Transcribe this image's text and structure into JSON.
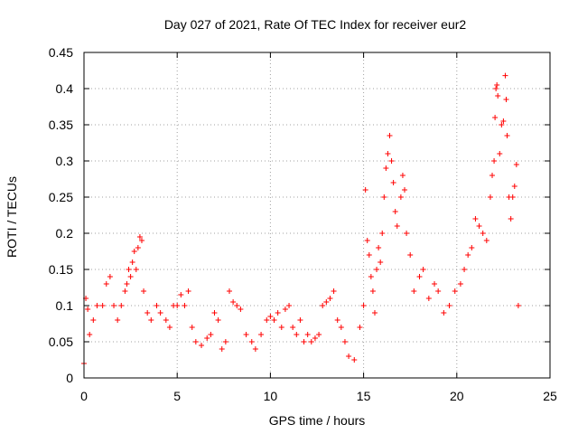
{
  "chart_data": {
    "type": "scatter",
    "title": "Day 027 of 2021, Rate Of TEC Index for receiver eur2",
    "xlabel": "GPS time / hours",
    "ylabel": "ROTI / TECUs",
    "xlim": [
      0,
      25
    ],
    "ylim": [
      0,
      0.45
    ],
    "x_ticks": [
      0,
      5,
      10,
      15,
      20,
      25
    ],
    "x_tick_labels": [
      "0",
      "5",
      "10",
      "15",
      "20",
      "25"
    ],
    "y_ticks": [
      0,
      0.05,
      0.1,
      0.15,
      0.2,
      0.25,
      0.3,
      0.35,
      0.4,
      0.45
    ],
    "y_tick_labels": [
      "0",
      "0.05",
      "0.1",
      "0.15",
      "0.2",
      "0.25",
      "0.3",
      "0.35",
      "0.4",
      "0.45"
    ],
    "grid": true,
    "marker": "plus",
    "color": "#ff0000",
    "series": [
      {
        "name": "",
        "points": [
          [
            0.0,
            0.02
          ],
          [
            0.1,
            0.11
          ],
          [
            0.2,
            0.095
          ],
          [
            0.3,
            0.06
          ],
          [
            0.5,
            0.08
          ],
          [
            0.7,
            0.1
          ],
          [
            1.0,
            0.1
          ],
          [
            1.2,
            0.13
          ],
          [
            1.4,
            0.14
          ],
          [
            1.6,
            0.1
          ],
          [
            1.8,
            0.08
          ],
          [
            2.0,
            0.1
          ],
          [
            2.2,
            0.12
          ],
          [
            2.3,
            0.13
          ],
          [
            2.4,
            0.15
          ],
          [
            2.5,
            0.14
          ],
          [
            2.6,
            0.16
          ],
          [
            2.7,
            0.175
          ],
          [
            2.8,
            0.15
          ],
          [
            2.9,
            0.18
          ],
          [
            3.0,
            0.195
          ],
          [
            3.1,
            0.19
          ],
          [
            3.2,
            0.12
          ],
          [
            3.4,
            0.09
          ],
          [
            3.6,
            0.08
          ],
          [
            3.9,
            0.1
          ],
          [
            4.1,
            0.09
          ],
          [
            4.4,
            0.08
          ],
          [
            4.6,
            0.07
          ],
          [
            4.8,
            0.1
          ],
          [
            5.0,
            0.1
          ],
          [
            5.2,
            0.115
          ],
          [
            5.4,
            0.1
          ],
          [
            5.6,
            0.12
          ],
          [
            5.8,
            0.07
          ],
          [
            6.0,
            0.05
          ],
          [
            6.3,
            0.045
          ],
          [
            6.6,
            0.055
          ],
          [
            6.8,
            0.06
          ],
          [
            7.0,
            0.09
          ],
          [
            7.2,
            0.08
          ],
          [
            7.4,
            0.04
          ],
          [
            7.6,
            0.05
          ],
          [
            7.8,
            0.12
          ],
          [
            8.0,
            0.105
          ],
          [
            8.2,
            0.1
          ],
          [
            8.4,
            0.095
          ],
          [
            8.7,
            0.06
          ],
          [
            9.0,
            0.05
          ],
          [
            9.2,
            0.04
          ],
          [
            9.5,
            0.06
          ],
          [
            9.8,
            0.08
          ],
          [
            10.0,
            0.085
          ],
          [
            10.2,
            0.08
          ],
          [
            10.4,
            0.09
          ],
          [
            10.6,
            0.07
          ],
          [
            10.8,
            0.095
          ],
          [
            11.0,
            0.1
          ],
          [
            11.2,
            0.07
          ],
          [
            11.4,
            0.06
          ],
          [
            11.6,
            0.08
          ],
          [
            11.8,
            0.05
          ],
          [
            12.0,
            0.06
          ],
          [
            12.2,
            0.05
          ],
          [
            12.4,
            0.055
          ],
          [
            12.6,
            0.06
          ],
          [
            12.8,
            0.1
          ],
          [
            13.0,
            0.105
          ],
          [
            13.2,
            0.11
          ],
          [
            13.4,
            0.12
          ],
          [
            13.6,
            0.08
          ],
          [
            13.8,
            0.07
          ],
          [
            14.0,
            0.05
          ],
          [
            14.2,
            0.03
          ],
          [
            14.5,
            0.025
          ],
          [
            14.8,
            0.07
          ],
          [
            15.0,
            0.1
          ],
          [
            15.1,
            0.26
          ],
          [
            15.2,
            0.19
          ],
          [
            15.3,
            0.17
          ],
          [
            15.4,
            0.14
          ],
          [
            15.5,
            0.12
          ],
          [
            15.6,
            0.09
          ],
          [
            15.7,
            0.15
          ],
          [
            15.8,
            0.18
          ],
          [
            15.9,
            0.16
          ],
          [
            16.0,
            0.2
          ],
          [
            16.1,
            0.25
          ],
          [
            16.2,
            0.29
          ],
          [
            16.3,
            0.31
          ],
          [
            16.4,
            0.335
          ],
          [
            16.5,
            0.3
          ],
          [
            16.6,
            0.27
          ],
          [
            16.7,
            0.23
          ],
          [
            16.8,
            0.21
          ],
          [
            17.0,
            0.25
          ],
          [
            17.1,
            0.28
          ],
          [
            17.2,
            0.26
          ],
          [
            17.3,
            0.2
          ],
          [
            17.5,
            0.17
          ],
          [
            17.7,
            0.12
          ],
          [
            18.0,
            0.14
          ],
          [
            18.2,
            0.15
          ],
          [
            18.5,
            0.11
          ],
          [
            18.8,
            0.13
          ],
          [
            19.0,
            0.12
          ],
          [
            19.3,
            0.09
          ],
          [
            19.6,
            0.1
          ],
          [
            19.9,
            0.12
          ],
          [
            20.2,
            0.13
          ],
          [
            20.4,
            0.15
          ],
          [
            20.6,
            0.17
          ],
          [
            20.8,
            0.18
          ],
          [
            21.0,
            0.22
          ],
          [
            21.2,
            0.21
          ],
          [
            21.4,
            0.2
          ],
          [
            21.6,
            0.19
          ],
          [
            21.8,
            0.25
          ],
          [
            21.9,
            0.28
          ],
          [
            22.0,
            0.3
          ],
          [
            22.05,
            0.36
          ],
          [
            22.1,
            0.4
          ],
          [
            22.15,
            0.405
          ],
          [
            22.2,
            0.39
          ],
          [
            22.3,
            0.31
          ],
          [
            22.4,
            0.35
          ],
          [
            22.5,
            0.355
          ],
          [
            22.6,
            0.418
          ],
          [
            22.65,
            0.385
          ],
          [
            22.7,
            0.335
          ],
          [
            22.8,
            0.25
          ],
          [
            22.9,
            0.22
          ],
          [
            23.0,
            0.25
          ],
          [
            23.1,
            0.265
          ],
          [
            23.2,
            0.295
          ],
          [
            23.3,
            0.1
          ]
        ]
      }
    ]
  }
}
